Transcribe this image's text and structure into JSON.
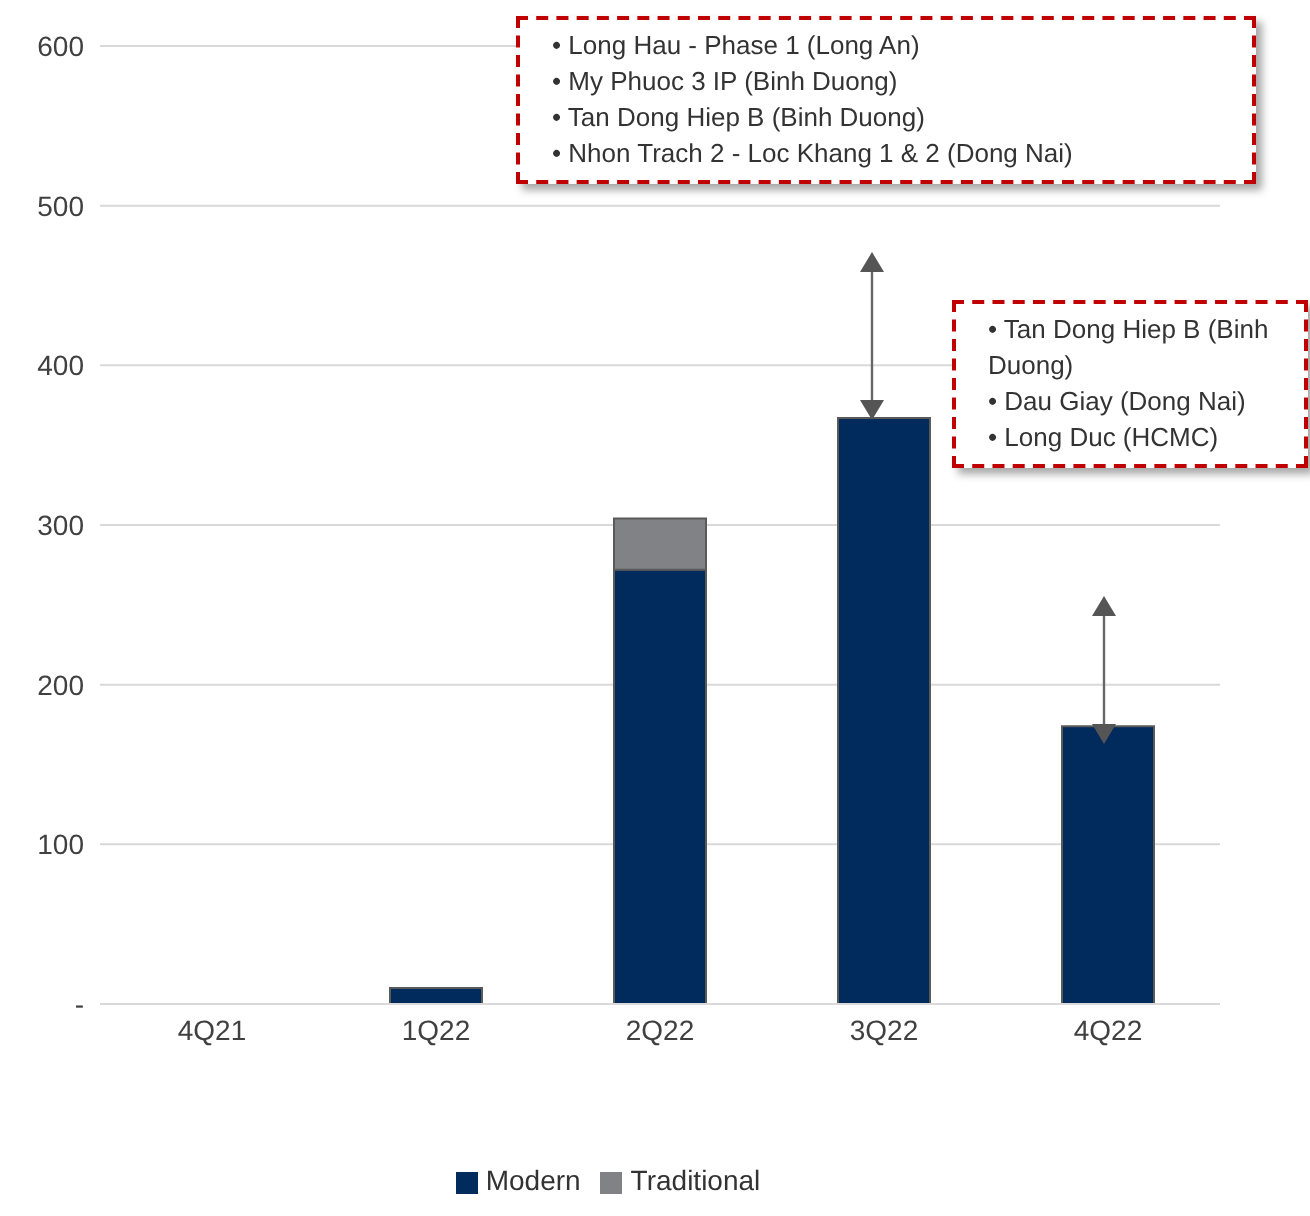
{
  "chart_data": {
    "type": "bar",
    "stacked": true,
    "categories": [
      "4Q21",
      "1Q22",
      "2Q22",
      "3Q22",
      "4Q22"
    ],
    "series": [
      {
        "name": "Modern",
        "color": "#002b5c",
        "values": [
          0,
          10,
          272,
          367,
          174
        ]
      },
      {
        "name": "Traditional",
        "color": "#808285",
        "values": [
          0,
          0,
          32,
          0,
          0
        ]
      }
    ],
    "ylim": [
      0,
      600
    ],
    "yticks": [
      {
        "value": 0,
        "label": "-"
      },
      100,
      200,
      300,
      400,
      500,
      600
    ],
    "grid": "y",
    "legend": "bottom",
    "annotations": [
      "• Long Hau - Phase 1 (Long An)",
      "• My Phuoc 3 IP (Binh Duong)",
      "• Tan Dong Hiep B (Binh Duong)",
      "• Nhon Trach 2 - Loc Khang 1 & 2 (Dong Nai)",
      "• Tan Dong Hiep B (Binh Duong)",
      "• Dau Giay (Dong Nai)",
      "• Long Duc (HCMC)"
    ]
  }
}
